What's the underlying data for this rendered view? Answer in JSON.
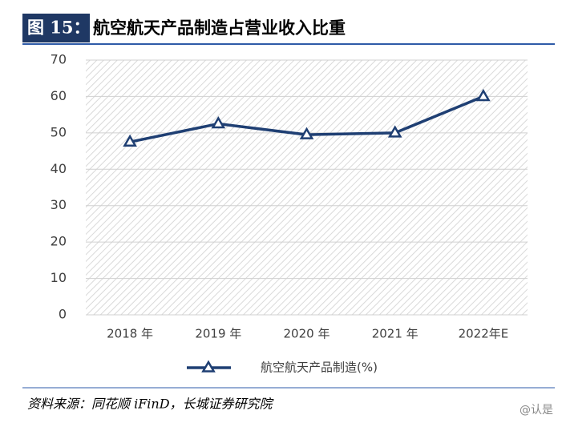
{
  "header": {
    "label": "图 15：",
    "title": "航空航天产品制造占营业收入比重"
  },
  "chart_data": {
    "type": "line",
    "categories": [
      "2018 年",
      "2019 年",
      "2020 年",
      "2021 年",
      "2022年E"
    ],
    "series": [
      {
        "name": "航空航天产品制造(%)",
        "color": "#1f3f73",
        "values": [
          47.5,
          52.5,
          49.5,
          50,
          60
        ]
      }
    ],
    "ylim": [
      0,
      70
    ],
    "yticks": [
      0,
      10,
      20,
      30,
      40,
      50,
      60,
      70
    ],
    "grid": true,
    "legend": "bottom"
  },
  "source": "资料来源：同花顺 iFinD，长城证券研究院",
  "watermark": "@认是"
}
